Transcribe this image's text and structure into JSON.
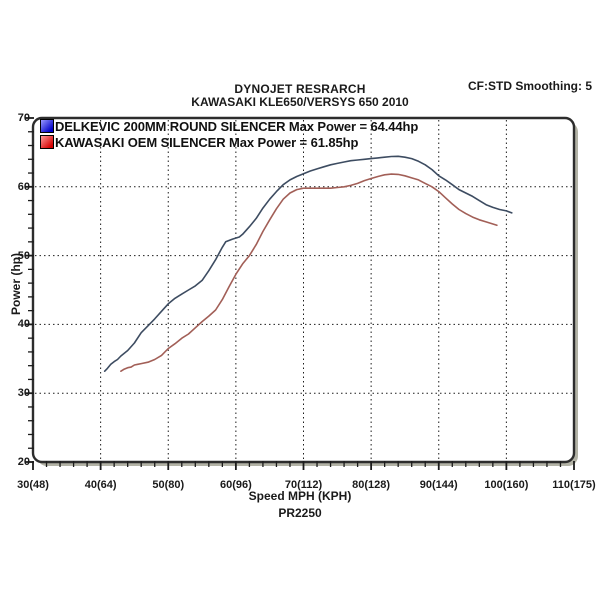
{
  "header": {
    "title": "DYNOJET RESRARCH",
    "subtitle": "KAWASAKI KLE650/VERSYS 650 2010",
    "cf_info": "CF:STD Smoothing: 5"
  },
  "footer": {
    "code": "PR2250"
  },
  "colors": {
    "background": "#ffffff",
    "frame_border": "#2d2d2d",
    "frame_shadow": "#b3b3a6",
    "grid": "#1c1c1c",
    "tick": "#1c1c1c",
    "text": "#1a1a1a"
  },
  "chart_data": {
    "type": "line",
    "title": "DYNOJET RESRARCH",
    "subtitle": "KAWASAKI KLE650/VERSYS 650 2010",
    "xlabel": "Speed MPH (KPH)",
    "ylabel": "Power (hp)",
    "xlim": [
      30,
      110
    ],
    "ylim": [
      20,
      70
    ],
    "x_tick_values": [
      30,
      40,
      50,
      60,
      70,
      80,
      90,
      100,
      110
    ],
    "x_tick_labels": [
      "30(48)",
      "40(64)",
      "50(80)",
      "60(96)",
      "70(112)",
      "80(128)",
      "90(144)",
      "100(160)",
      "110(175)"
    ],
    "y_tick_values": [
      20,
      30,
      40,
      50,
      60,
      70
    ],
    "y_tick_labels": [
      "20",
      "30",
      "40",
      "50",
      "60",
      "70"
    ],
    "minor_tick_step": 2,
    "grid": "dotted major gridlines, interior only",
    "legend_position": "top-left inside plot",
    "series": [
      {
        "name": "DELKEVIC 200MM ROUND SILENCER",
        "label": "DELKEVIC 200MM ROUND SILENCER Max Power = 64.44hp",
        "max_power_hp": 64.44,
        "color": "#3d4c61",
        "swatch_gradient": [
          "#9a9aff",
          "#0000c8"
        ],
        "points": [
          [
            40.6,
            33.2
          ],
          [
            41,
            33.6
          ],
          [
            41.5,
            34.2
          ],
          [
            42,
            34.6
          ],
          [
            42.5,
            34.9
          ],
          [
            43,
            35.4
          ],
          [
            44,
            36.2
          ],
          [
            45,
            37.3
          ],
          [
            46,
            38.8
          ],
          [
            47,
            39.8
          ],
          [
            48,
            40.8
          ],
          [
            49,
            41.9
          ],
          [
            50,
            43.0
          ],
          [
            51,
            43.8
          ],
          [
            52,
            44.4
          ],
          [
            53,
            45.0
          ],
          [
            54,
            45.6
          ],
          [
            55,
            46.4
          ],
          [
            56,
            47.8
          ],
          [
            57,
            49.4
          ],
          [
            58,
            51.2
          ],
          [
            58.5,
            52.0
          ],
          [
            59.5,
            52.4
          ],
          [
            60.5,
            52.7
          ],
          [
            61,
            53.1
          ],
          [
            62,
            54.2
          ],
          [
            63,
            55.4
          ],
          [
            64,
            56.9
          ],
          [
            65,
            58.2
          ],
          [
            66,
            59.3
          ],
          [
            67,
            60.3
          ],
          [
            68,
            61.0
          ],
          [
            69,
            61.5
          ],
          [
            70,
            61.9
          ],
          [
            71,
            62.3
          ],
          [
            72,
            62.6
          ],
          [
            73,
            62.9
          ],
          [
            74,
            63.2
          ],
          [
            75,
            63.4
          ],
          [
            76,
            63.6
          ],
          [
            77,
            63.8
          ],
          [
            78,
            63.9
          ],
          [
            79,
            64.0
          ],
          [
            80,
            64.1
          ],
          [
            81,
            64.2
          ],
          [
            82,
            64.3
          ],
          [
            83,
            64.4
          ],
          [
            84,
            64.44
          ],
          [
            85,
            64.3
          ],
          [
            86,
            64.1
          ],
          [
            87,
            63.7
          ],
          [
            88,
            63.2
          ],
          [
            89,
            62.5
          ],
          [
            90,
            61.6
          ],
          [
            91,
            61.0
          ],
          [
            92,
            60.3
          ],
          [
            93,
            59.6
          ],
          [
            94,
            59.1
          ],
          [
            95,
            58.6
          ],
          [
            96,
            58.0
          ],
          [
            97,
            57.4
          ],
          [
            98,
            57.0
          ],
          [
            99,
            56.7
          ],
          [
            100,
            56.5
          ],
          [
            100.8,
            56.2
          ]
        ]
      },
      {
        "name": "KAWASAKI OEM SILENCER",
        "label": "KAWASAKI OEM SILENCER Max Power = 61.85hp",
        "max_power_hp": 61.85,
        "color": "#a25f57",
        "swatch_gradient": [
          "#ff9a9a",
          "#d40000"
        ],
        "points": [
          [
            43,
            33.2
          ],
          [
            43.5,
            33.5
          ],
          [
            44,
            33.7
          ],
          [
            44.5,
            33.8
          ],
          [
            45,
            34.1
          ],
          [
            45.5,
            34.2
          ],
          [
            46,
            34.3
          ],
          [
            47,
            34.5
          ],
          [
            48,
            34.9
          ],
          [
            49,
            35.5
          ],
          [
            50,
            36.5
          ],
          [
            51,
            37.2
          ],
          [
            52,
            38.0
          ],
          [
            53,
            38.6
          ],
          [
            54,
            39.5
          ],
          [
            55,
            40.4
          ],
          [
            56,
            41.2
          ],
          [
            57,
            42.1
          ],
          [
            58,
            43.6
          ],
          [
            59,
            45.5
          ],
          [
            60,
            47.3
          ],
          [
            61,
            48.8
          ],
          [
            62,
            50.0
          ],
          [
            63,
            51.6
          ],
          [
            64,
            53.5
          ],
          [
            65,
            55.2
          ],
          [
            66,
            56.8
          ],
          [
            67,
            58.2
          ],
          [
            68,
            59.1
          ],
          [
            69,
            59.6
          ],
          [
            70,
            59.8
          ],
          [
            71,
            59.8
          ],
          [
            72,
            59.8
          ],
          [
            73,
            59.8
          ],
          [
            74,
            59.8
          ],
          [
            75,
            59.9
          ],
          [
            76,
            60.0
          ],
          [
            77,
            60.2
          ],
          [
            78,
            60.5
          ],
          [
            79,
            60.9
          ],
          [
            80,
            61.2
          ],
          [
            81,
            61.5
          ],
          [
            82,
            61.75
          ],
          [
            83,
            61.85
          ],
          [
            84,
            61.8
          ],
          [
            85,
            61.6
          ],
          [
            86,
            61.3
          ],
          [
            87,
            61.0
          ],
          [
            88,
            60.5
          ],
          [
            89,
            60.0
          ],
          [
            90,
            59.3
          ],
          [
            91,
            58.4
          ],
          [
            92,
            57.5
          ],
          [
            93,
            56.7
          ],
          [
            94,
            56.1
          ],
          [
            95,
            55.6
          ],
          [
            96,
            55.2
          ],
          [
            97,
            54.9
          ],
          [
            98,
            54.6
          ],
          [
            98.6,
            54.4
          ]
        ]
      }
    ]
  }
}
